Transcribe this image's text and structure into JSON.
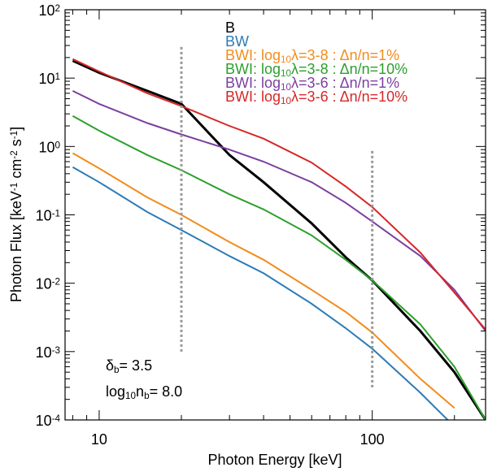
{
  "chart_data": {
    "type": "line",
    "xlabel": "Photon Energy [keV]",
    "ylabel": [
      "Photon Flux [keV",
      "-1",
      " cm",
      "-2",
      " s",
      "-1",
      "]"
    ],
    "log_x": true,
    "log_y": true,
    "xlim": [
      7.5,
      260
    ],
    "ylim": [
      0.0001,
      100
    ],
    "xticks": [
      10,
      100
    ],
    "yticks": [
      {
        "value": 0.0001,
        "label": [
          "10",
          "-4"
        ]
      },
      {
        "value": 0.001,
        "label": [
          "10",
          "-3"
        ]
      },
      {
        "value": 0.01,
        "label": [
          "10",
          "-2"
        ]
      },
      {
        "value": 0.1,
        "label": [
          "10",
          "-1"
        ]
      },
      {
        "value": 1,
        "label": [
          "10",
          "0"
        ]
      },
      {
        "value": 10,
        "label": [
          "10",
          "1"
        ]
      },
      {
        "value": 100,
        "label": [
          "10",
          "2"
        ]
      }
    ],
    "legend": "upper right",
    "x": [
      8,
      10,
      15,
      20,
      30,
      40,
      60,
      80,
      100,
      150,
      200,
      260
    ],
    "series": [
      {
        "name": [
          "B"
        ],
        "color": "#000000",
        "values": [
          18,
          12,
          6.5,
          4.2,
          0.75,
          0.3,
          0.075,
          0.024,
          0.011,
          0.002,
          0.0005,
          0.0001
        ]
      },
      {
        "name": [
          "BW"
        ],
        "color": "#2c7bb6",
        "values": [
          0.5,
          0.3,
          0.11,
          0.06,
          0.025,
          0.014,
          0.005,
          0.0022,
          0.0011,
          0.00025,
          8e-05,
          null
        ]
      },
      {
        "name": [
          "BWI: log",
          "10",
          "λ=3-8 : Δn/n=1%"
        ],
        "color": "#f28c1c",
        "values": [
          0.8,
          0.48,
          0.18,
          0.1,
          0.04,
          0.022,
          0.008,
          0.0038,
          0.0019,
          0.0004,
          0.00015,
          null
        ]
      },
      {
        "name": [
          "BWI: log",
          "10",
          "λ=3-8 : Δn/n=10%"
        ],
        "color": "#2ca02c",
        "values": [
          2.8,
          1.7,
          0.75,
          0.45,
          0.2,
          0.12,
          0.05,
          0.022,
          0.011,
          0.0025,
          0.0006,
          0.0001
        ]
      },
      {
        "name": [
          "BWI: log",
          "10",
          "λ=3-6 : Δn/n=1%"
        ],
        "color": "#7b3fa0",
        "values": [
          6.5,
          4.2,
          2.2,
          1.5,
          0.9,
          0.6,
          0.3,
          0.15,
          0.08,
          0.025,
          0.008,
          0.002
        ]
      },
      {
        "name": [
          "BWI: log",
          "10",
          "λ=3-6 : Δn/n=10%"
        ],
        "color": "#d62728",
        "values": [
          19,
          12.5,
          6,
          3.9,
          2.0,
          1.3,
          0.58,
          0.26,
          0.13,
          0.028,
          0.0073,
          0.0021
        ]
      }
    ],
    "vlines": [
      {
        "x": 20,
        "ymin": 0.001,
        "ymax": 30
      },
      {
        "x": 100,
        "ymin": 0.0003,
        "ymax": 0.9
      }
    ],
    "annotations": [
      [
        "δ",
        "b",
        "= 3.5"
      ],
      [
        "log",
        "10",
        "n",
        "b",
        "= 8.0"
      ]
    ]
  }
}
